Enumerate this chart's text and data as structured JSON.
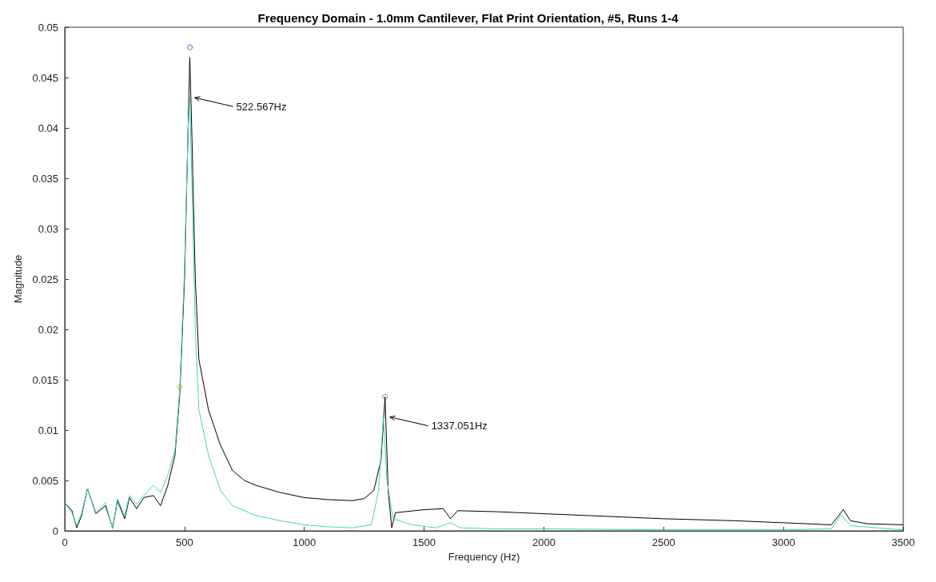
{
  "chart_data": {
    "type": "line",
    "title": "Frequency Domain - 1.0mm Cantilever, Flat Print Orientation, #5, Runs 1-4",
    "xlabel": "Frequency (Hz)",
    "ylabel": "Magnitude",
    "xlim": [
      0,
      3500
    ],
    "ylim": [
      0,
      0.05
    ],
    "xticks": [
      0,
      500,
      1000,
      1500,
      2000,
      2500,
      3000,
      3500
    ],
    "yticks": [
      0,
      0.005,
      0.01,
      0.015,
      0.02,
      0.025,
      0.03,
      0.035,
      0.04,
      0.045,
      0.05
    ],
    "grid": false,
    "marker": "none",
    "line_style": "solid",
    "series": [
      {
        "color": "#000000",
        "x": [
          0,
          30,
          50,
          70,
          95,
          130,
          170,
          200,
          220,
          250,
          270,
          300,
          330,
          370,
          400,
          430,
          460,
          480,
          500,
          515,
          522,
          530,
          545,
          560,
          600,
          650,
          700,
          750,
          800,
          900,
          1000,
          1100,
          1200,
          1250,
          1290,
          1320,
          1337,
          1350,
          1365,
          1380,
          1500,
          1580,
          1610,
          1640,
          1800,
          2000,
          2200,
          2500,
          2800,
          3000,
          3200,
          3250,
          3280,
          3350,
          3500
        ],
        "values": [
          0.0028,
          0.002,
          0.0003,
          0.0015,
          0.0042,
          0.0017,
          0.0025,
          0.0003,
          0.003,
          0.0012,
          0.0033,
          0.0022,
          0.0033,
          0.0035,
          0.0025,
          0.0045,
          0.0075,
          0.0135,
          0.025,
          0.04,
          0.047,
          0.04,
          0.025,
          0.017,
          0.012,
          0.0085,
          0.006,
          0.005,
          0.0045,
          0.0038,
          0.0033,
          0.0031,
          0.003,
          0.0032,
          0.004,
          0.007,
          0.0133,
          0.004,
          0.0003,
          0.0018,
          0.0021,
          0.0022,
          0.0012,
          0.002,
          0.0019,
          0.0017,
          0.0015,
          0.0012,
          0.001,
          0.0008,
          0.0006,
          0.0021,
          0.001,
          0.0007,
          0.0006
        ]
      },
      {
        "color": "#40d8c0",
        "x": [
          0,
          30,
          50,
          70,
          95,
          130,
          170,
          200,
          220,
          250,
          270,
          300,
          330,
          370,
          400,
          430,
          460,
          480,
          500,
          515,
          522,
          530,
          545,
          560,
          600,
          650,
          700,
          800,
          900,
          1000,
          1100,
          1200,
          1280,
          1310,
          1330,
          1345,
          1370,
          1450,
          1550,
          1610,
          1650,
          1800,
          2000,
          2500,
          3000,
          3200,
          3240,
          3280,
          3500
        ],
        "values": [
          0.0028,
          0.0018,
          0.0005,
          0.0017,
          0.0042,
          0.0018,
          0.0028,
          0.0002,
          0.0032,
          0.0015,
          0.0035,
          0.0027,
          0.0035,
          0.0045,
          0.0038,
          0.0055,
          0.008,
          0.014,
          0.026,
          0.04,
          0.043,
          0.035,
          0.02,
          0.012,
          0.0075,
          0.004,
          0.0025,
          0.0015,
          0.001,
          0.0006,
          0.0004,
          0.0003,
          0.0006,
          0.004,
          0.0113,
          0.005,
          0.0012,
          0.0006,
          0.0003,
          0.0008,
          0.0003,
          0.0002,
          0.0002,
          0.0001,
          0.0001,
          0.0002,
          0.0016,
          0.0005,
          0.0001
        ]
      },
      {
        "type": "scatter",
        "marker": "circle",
        "x": [
          522.567,
          1337.051,
          480
        ],
        "values": [
          0.048,
          0.0133,
          0.0143
        ],
        "colors": [
          "#3030c0",
          "#606060",
          "#a0a000"
        ]
      }
    ],
    "annotations": [
      {
        "text": "522.567Hz",
        "x": 522.567,
        "y": 0.043
      },
      {
        "text": "1337.051Hz",
        "x": 1337.051,
        "y": 0.0113
      }
    ]
  }
}
